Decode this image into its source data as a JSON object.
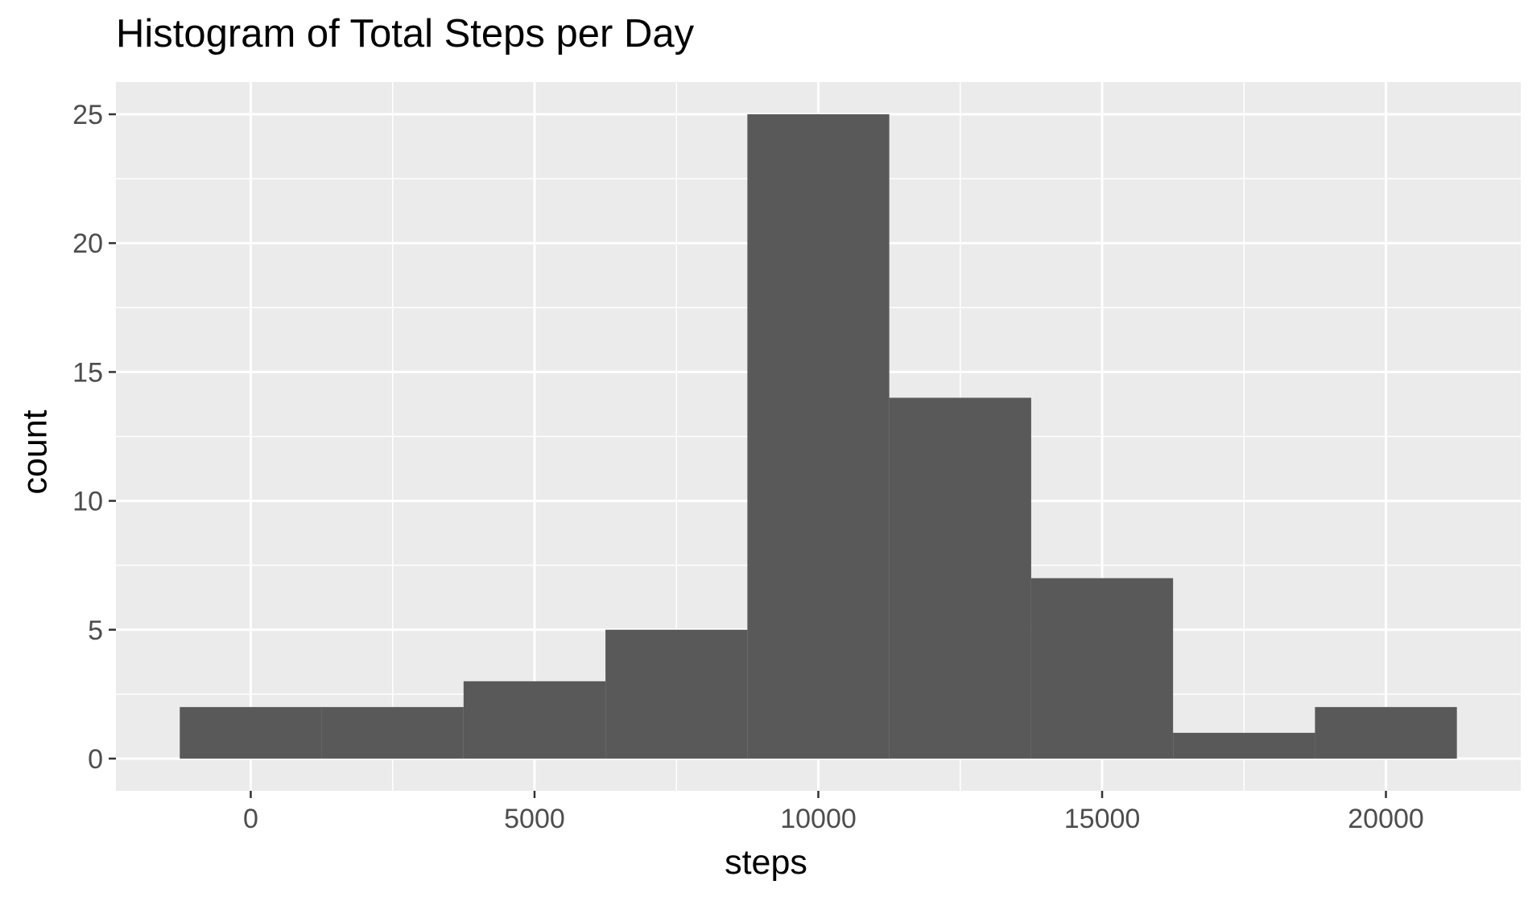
{
  "chart_data": {
    "type": "bar",
    "title": "Histogram of Total Steps per Day",
    "xlabel": "steps",
    "ylabel": "count",
    "bins": [
      {
        "start": -1250,
        "end": 1250,
        "count": 2
      },
      {
        "start": 1250,
        "end": 3750,
        "count": 2
      },
      {
        "start": 3750,
        "end": 6250,
        "count": 3
      },
      {
        "start": 6250,
        "end": 8750,
        "count": 5
      },
      {
        "start": 8750,
        "end": 11250,
        "count": 25
      },
      {
        "start": 11250,
        "end": 13750,
        "count": 14
      },
      {
        "start": 13750,
        "end": 16250,
        "count": 7
      },
      {
        "start": 16250,
        "end": 18750,
        "count": 1
      },
      {
        "start": 18750,
        "end": 21250,
        "count": 2
      }
    ],
    "xlim": [
      -2375,
      22375
    ],
    "ylim": [
      -1.25,
      26.25
    ],
    "xticks": [
      0,
      5000,
      10000,
      15000,
      20000
    ],
    "xtick_labels": [
      "0",
      "5000",
      "10000",
      "15000",
      "20000"
    ],
    "yticks": [
      0,
      5,
      10,
      15,
      20,
      25
    ],
    "ytick_labels": [
      "0",
      "5",
      "10",
      "15",
      "20",
      "25"
    ],
    "grid": true,
    "colors": {
      "bar": "#595959",
      "panel": "#ebebeb",
      "grid": "#ffffff"
    }
  }
}
